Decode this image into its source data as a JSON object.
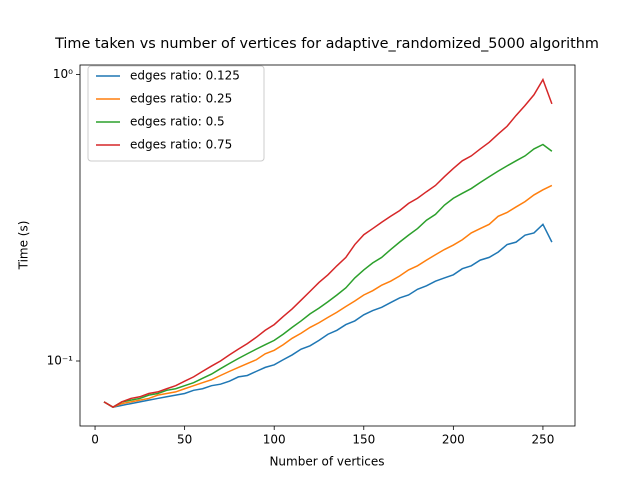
{
  "chart_data": {
    "type": "line",
    "title": "Time taken vs number of vertices for adaptive_randomized_5000 algorithm",
    "x_label": "Number of vertices",
    "y_label": "Time (s)",
    "x": [
      5,
      10,
      15,
      20,
      25,
      30,
      35,
      40,
      45,
      50,
      55,
      60,
      65,
      70,
      75,
      80,
      85,
      90,
      95,
      100,
      105,
      110,
      115,
      120,
      125,
      130,
      135,
      140,
      145,
      150,
      155,
      160,
      165,
      170,
      175,
      180,
      185,
      190,
      195,
      200,
      205,
      210,
      215,
      220,
      225,
      230,
      235,
      240,
      245,
      250,
      255
    ],
    "series": [
      {
        "name": "edges ratio: 0.125",
        "color": "#1f77b4",
        "values": [
          0.072,
          0.069,
          0.07,
          0.071,
          0.072,
          0.073,
          0.074,
          0.075,
          0.076,
          0.077,
          0.079,
          0.08,
          0.082,
          0.083,
          0.085,
          0.088,
          0.089,
          0.092,
          0.095,
          0.097,
          0.101,
          0.105,
          0.11,
          0.113,
          0.118,
          0.124,
          0.128,
          0.134,
          0.138,
          0.145,
          0.15,
          0.154,
          0.16,
          0.166,
          0.17,
          0.178,
          0.183,
          0.19,
          0.195,
          0.2,
          0.21,
          0.215,
          0.225,
          0.23,
          0.24,
          0.255,
          0.26,
          0.275,
          0.28,
          0.3,
          0.26
        ]
      },
      {
        "name": "edges ratio: 0.25",
        "color": "#ff7f0e",
        "values": [
          0.072,
          0.069,
          0.071,
          0.072,
          0.073,
          0.074,
          0.076,
          0.077,
          0.078,
          0.08,
          0.082,
          0.084,
          0.086,
          0.089,
          0.092,
          0.095,
          0.098,
          0.101,
          0.106,
          0.109,
          0.114,
          0.12,
          0.125,
          0.131,
          0.136,
          0.142,
          0.148,
          0.155,
          0.162,
          0.17,
          0.176,
          0.184,
          0.19,
          0.198,
          0.208,
          0.215,
          0.225,
          0.235,
          0.245,
          0.254,
          0.265,
          0.28,
          0.29,
          0.3,
          0.32,
          0.33,
          0.345,
          0.36,
          0.38,
          0.396,
          0.41
        ]
      },
      {
        "name": "edges ratio: 0.5",
        "color": "#2ca02c",
        "values": [
          0.072,
          0.069,
          0.072,
          0.073,
          0.074,
          0.076,
          0.077,
          0.079,
          0.08,
          0.082,
          0.084,
          0.087,
          0.09,
          0.094,
          0.098,
          0.102,
          0.106,
          0.11,
          0.114,
          0.118,
          0.124,
          0.131,
          0.138,
          0.146,
          0.153,
          0.161,
          0.17,
          0.18,
          0.195,
          0.208,
          0.22,
          0.23,
          0.245,
          0.26,
          0.275,
          0.29,
          0.31,
          0.325,
          0.35,
          0.37,
          0.385,
          0.4,
          0.42,
          0.44,
          0.46,
          0.48,
          0.5,
          0.52,
          0.55,
          0.57,
          0.54
        ]
      },
      {
        "name": "edges ratio: 0.75",
        "color": "#d62728",
        "values": [
          0.072,
          0.069,
          0.072,
          0.074,
          0.075,
          0.077,
          0.078,
          0.08,
          0.082,
          0.085,
          0.088,
          0.092,
          0.096,
          0.1,
          0.105,
          0.11,
          0.115,
          0.121,
          0.128,
          0.134,
          0.143,
          0.152,
          0.163,
          0.175,
          0.188,
          0.2,
          0.215,
          0.23,
          0.255,
          0.276,
          0.29,
          0.305,
          0.32,
          0.335,
          0.355,
          0.37,
          0.39,
          0.41,
          0.44,
          0.47,
          0.5,
          0.52,
          0.55,
          0.58,
          0.62,
          0.66,
          0.72,
          0.78,
          0.85,
          0.96,
          0.79
        ]
      }
    ],
    "xlim": [
      -8.4,
      267.9
    ],
    "xticks": [
      0,
      50,
      100,
      150,
      200,
      250
    ],
    "ylim": [
      0.0593,
      1.08
    ],
    "yticks": [
      {
        "value": 0.1,
        "label": "10⁻¹"
      },
      {
        "value": 1,
        "label": "10⁰"
      }
    ],
    "y_scale": "log",
    "legend": "upper left"
  }
}
